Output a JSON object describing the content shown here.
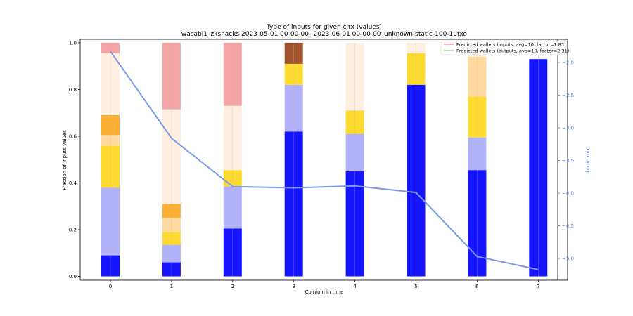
{
  "chart_data": {
    "type": "bar",
    "title": "Type of inputs for given cjtx (values)",
    "subtitle": "wasabi1_zksnacks 2023-05-01 00-00-00--2023-06-01 00-00-00_unknown-static-100-1utxo",
    "xlabel": "Coinjoin in time",
    "ylabel": "Fraction of inputs values",
    "ylabel_right": "btc in mix",
    "categories": [
      "0",
      "1",
      "2",
      "3",
      "4",
      "5",
      "6",
      "7"
    ],
    "ylim": [
      0.0,
      1.0
    ],
    "yticks": [
      "0.0",
      "0.2",
      "0.4",
      "0.6",
      "0.8",
      "1.0"
    ],
    "y2lim": [
      -5.35,
      -1.75
    ],
    "y2ticks": [
      "-2.0",
      "-2.5",
      "-3.0",
      "-3.5",
      "-4.0",
      "-4.5",
      "-5.0"
    ],
    "stack_segments": [
      {
        "color": "#1515ff",
        "values": [
          0.09,
          0.06,
          0.205,
          0.62,
          0.45,
          0.82,
          0.455,
          0.93
        ]
      },
      {
        "color": "#b2b2fa",
        "values": [
          0.29,
          0.075,
          0.18,
          0.2,
          0.16,
          0.0,
          0.14,
          0.0
        ]
      },
      {
        "color": "#fdda30",
        "values": [
          0.18,
          0.055,
          0.07,
          0.09,
          0.1,
          0.135,
          0.175,
          0.0
        ]
      },
      {
        "color": "#fed9a0",
        "values": [
          0.045,
          0.06,
          0.0,
          0.0,
          0.0,
          0.0,
          0.17,
          0.0
        ]
      },
      {
        "color": "#fbb033",
        "values": [
          0.085,
          0.06,
          0.0,
          0.0,
          0.0,
          0.0,
          0.0,
          0.0
        ]
      },
      {
        "color": "#feefe0",
        "values": [
          0.265,
          0.405,
          0.275,
          0.0,
          0.29,
          0.045,
          0.06,
          0.0
        ]
      },
      {
        "color": "#f4a6a6",
        "values": [
          0.045,
          0.285,
          0.27,
          0.0,
          0.0,
          0.0,
          0.0,
          0.0
        ]
      },
      {
        "color": "#a0522d",
        "values": [
          0.0,
          0.0,
          0.0,
          0.09,
          0.0,
          0.0,
          0.0,
          0.0
        ]
      }
    ],
    "line_series": {
      "color": "#7b9be8",
      "axis": "right",
      "x": [
        0,
        1,
        2,
        3,
        4,
        5,
        6,
        7
      ],
      "values": [
        -1.83,
        -3.16,
        -3.9,
        -3.92,
        -3.89,
        -3.99,
        -4.97,
        -5.17
      ]
    },
    "legend": {
      "placement": "top-right",
      "entries": [
        {
          "label": "Predicted wallets (inputs, avg=10, factor=1.83)",
          "color": "#f08080"
        },
        {
          "label": "Predicted wallets (outputs, avg=10, factor=2.31)",
          "color": "#7fd07f"
        }
      ]
    }
  }
}
